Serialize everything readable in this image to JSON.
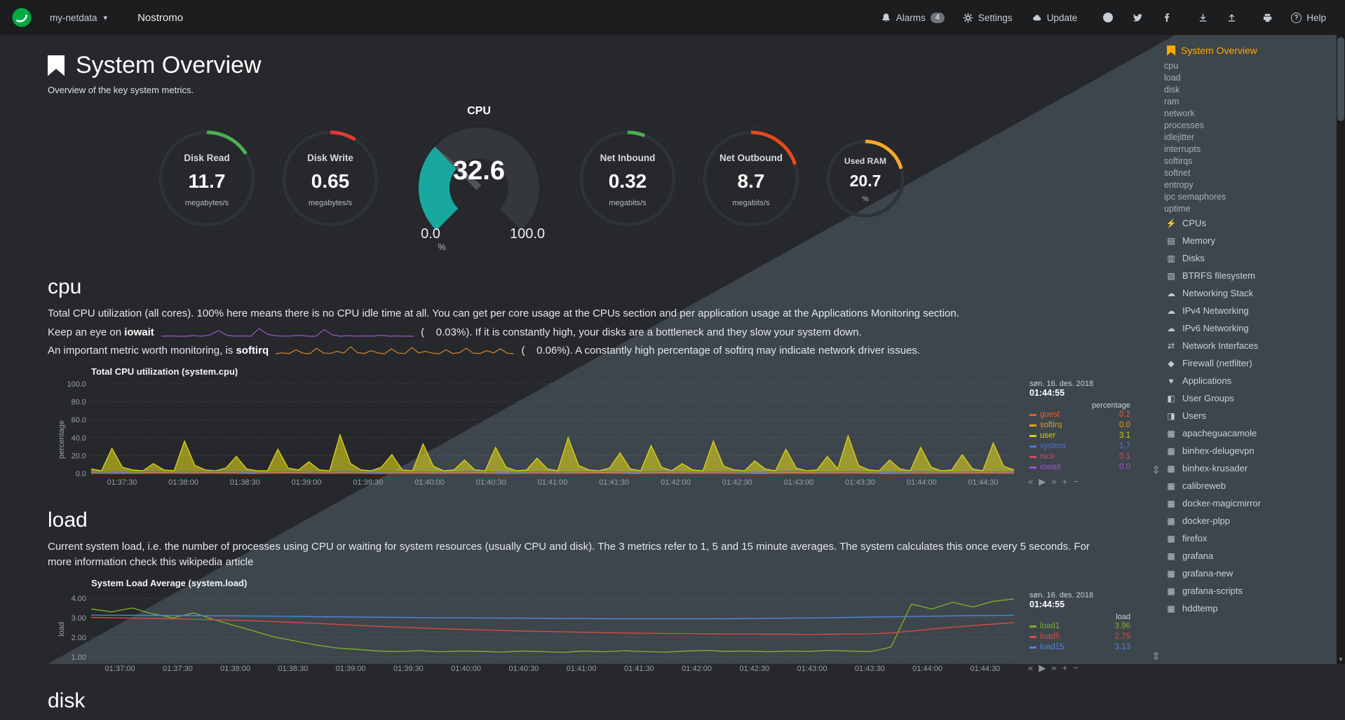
{
  "navbar": {
    "brand": "my-netdata",
    "caret": "▾",
    "hostname": "Nostromo",
    "alarms_label": "Alarms",
    "alarms_badge": "4",
    "settings_label": "Settings",
    "update_label": "Update",
    "help_label": "Help",
    "help_glyph": "?"
  },
  "header": {
    "title": "System Overview",
    "subtitle": "Overview of the key system metrics."
  },
  "gauges": [
    {
      "id": "disk-read",
      "type": "pie",
      "title": "Disk Read",
      "value": "11.7",
      "unit": "megabytes/s",
      "color": "#4caf50",
      "fraction": 0.16
    },
    {
      "id": "disk-write",
      "type": "pie",
      "title": "Disk Write",
      "value": "0.65",
      "unit": "megabytes/s",
      "color": "#e53935",
      "fraction": 0.09
    },
    {
      "id": "cpu",
      "type": "gauge",
      "title": "CPU",
      "value": "32.6",
      "min_label": "0.0",
      "max_label": "100.0",
      "unit": "%",
      "color": "#19a8a0",
      "fraction": 0.326
    },
    {
      "id": "net-inbound",
      "type": "pie",
      "title": "Net Inbound",
      "value": "0.32",
      "unit": "megabits/s",
      "color": "#4caf50",
      "fraction": 0.06
    },
    {
      "id": "net-outbound",
      "type": "pie",
      "title": "Net Outbound",
      "value": "8.7",
      "unit": "megabits/s",
      "color": "#e64a19",
      "fraction": 0.2
    },
    {
      "id": "used-ram",
      "type": "pie",
      "small": true,
      "title": "Used RAM",
      "value": "20.7",
      "unit": "%",
      "color": "#f9a825",
      "fraction": 0.207
    }
  ],
  "cpu_section": {
    "heading": "cpu",
    "para": "Total CPU utilization (all cores). 100% here means there is no CPU idle time at all. You can get per core usage at the CPUs section and per application usage at the Applications Monitoring section.",
    "iowait_pre": "Keep an eye on ",
    "iowait_term": "iowait",
    "iowait_value": "(    0.03%)",
    "iowait_post": ". If it is constantly high, your disks are a bottleneck and they slow your system down.",
    "softirq_pre": "An important metric worth monitoring, is ",
    "softirq_term": "softirq",
    "softirq_value": "(    0.06%)",
    "softirq_post": ". A constantly high percentage of softirq may indicate network driver issues."
  },
  "sparklines": {
    "iowait": {
      "color": "#9a5bc9",
      "data": [
        0,
        0.1,
        0,
        0,
        0.2,
        0,
        0.5,
        2.2,
        0.4,
        0,
        0.1,
        0,
        3,
        0.8,
        0.2,
        0,
        0.1,
        0.3,
        0,
        0,
        2.6,
        0.5,
        0,
        0.2,
        0,
        0.1,
        0,
        0.4,
        0,
        0.1,
        0,
        0
      ]
    },
    "softirq": {
      "color": "#d08a2c",
      "data": [
        0.2,
        0.5,
        0.3,
        1.5,
        0.4,
        0.2,
        2,
        0.5,
        0.3,
        1,
        0.4,
        2.5,
        0.6,
        0.3,
        1.2,
        0.5,
        0.2,
        1.8,
        0.4,
        0.3,
        2.2,
        0.5,
        1,
        0.4,
        0.2,
        1.5,
        0.3,
        0.6,
        2,
        0.4,
        0.3,
        1.2,
        0.5,
        1.8,
        0.4,
        0.2
      ]
    }
  },
  "load_section": {
    "heading": "load",
    "para": "Current system load, i.e. the number of processes using CPU or waiting for system resources (usually CPU and disk). The 3 metrics refer to 1, 5 and 15 minute averages. The system calculates this once every 5 seconds. For more information check this ",
    "link": "wikipedia article"
  },
  "disk_section": {
    "heading": "disk"
  },
  "chart_ui": {
    "skip_back": "«",
    "play": "▶",
    "skip_forward": "»",
    "zoom_in": "+",
    "zoom_out": "−",
    "resize": "⇕"
  },
  "chart_data": [
    {
      "id": "cpu",
      "type": "area",
      "title": "Total CPU utilization (system.cpu)",
      "ylabel": "percentage",
      "ylim": [
        0,
        100
      ],
      "yticks": [
        0,
        20,
        40,
        60,
        80,
        100
      ],
      "ytick_labels": [
        "0.0",
        "20.0",
        "40.0",
        "60.0",
        "80.0",
        "100.0"
      ],
      "x_labels": [
        "01:37:30",
        "01:38:00",
        "01:38:30",
        "01:39:00",
        "01:39:30",
        "01:40:00",
        "01:40:30",
        "01:41:00",
        "01:41:30",
        "01:42:00",
        "01:42:30",
        "01:43:00",
        "01:43:30",
        "01:44:00",
        "01:44:30"
      ],
      "legend_date": "søn. 16. des. 2018",
      "legend_time": "01:44:55",
      "legend_unit": "percentage",
      "series": [
        {
          "name": "guest",
          "value": "0.2",
          "color": "#e0612e",
          "fill": true,
          "data": [
            0.3,
            0.1,
            0.4,
            0.2,
            0.3,
            0.1,
            0.5,
            0.2,
            0.3,
            0.1,
            0.4,
            0.2,
            0.3,
            0.1,
            0.4,
            0.2,
            0.5,
            0.1,
            0.3,
            0.2,
            0.4,
            0.1,
            0.3,
            0.2,
            0.4,
            0.1,
            0.3,
            0.2,
            0.4,
            0.2
          ]
        },
        {
          "name": "softirq",
          "value": "0.0",
          "color": "#e3a21a",
          "fill": true,
          "data": [
            0.5,
            0.3,
            0.7,
            0.4,
            0.6,
            0.3,
            0.8,
            0.4,
            0.5,
            0.3,
            0.7,
            0.4,
            0.6,
            0.3,
            0.5,
            0.4,
            0.8,
            0.3,
            0.6,
            0.4,
            0.5,
            0.3,
            0.7,
            0.4,
            0.6,
            0.3,
            0.5,
            0.4,
            0.7,
            0.3
          ]
        },
        {
          "name": "user",
          "value": "3.1",
          "color": "#d6cf1b",
          "fill": true,
          "data": [
            5,
            3,
            28,
            7,
            4,
            3,
            11,
            4,
            3,
            36,
            9,
            4,
            3,
            6,
            19,
            5,
            3,
            3,
            27,
            6,
            4,
            13,
            4,
            3,
            43,
            11,
            4,
            3,
            7,
            21,
            4,
            3,
            33,
            8,
            3,
            4,
            15,
            4,
            3,
            29,
            7,
            3,
            4,
            17,
            5,
            3,
            40,
            9,
            4,
            3,
            6,
            23,
            5,
            3,
            31,
            7,
            3,
            11,
            4,
            3,
            36,
            8,
            4,
            3,
            14,
            5,
            3,
            27,
            6,
            3,
            4,
            19,
            5,
            42,
            9,
            4,
            3,
            15,
            5,
            3,
            29,
            7,
            3,
            4,
            21,
            5,
            3,
            34,
            8,
            4
          ]
        },
        {
          "name": "system",
          "value": "1.7",
          "color": "#4d74d8",
          "fill": true,
          "data": [
            1.8,
            1.4,
            2.2,
            1.6,
            2.4,
            1.4,
            2.0,
            1.7,
            2.3,
            1.5,
            2.1,
            1.6,
            2.5,
            1.4,
            1.9,
            1.7,
            2.2,
            1.5,
            2.3,
            1.6,
            2.0,
            1.4,
            2.4,
            1.7,
            2.1,
            1.5,
            2.2,
            1.6,
            2.0,
            1.7
          ]
        },
        {
          "name": "nice",
          "value": "0.1",
          "color": "#d14a61",
          "fill": false,
          "data": []
        },
        {
          "name": "iowait",
          "value": "0.0",
          "color": "#9e54c9",
          "fill": false,
          "data": []
        }
      ]
    },
    {
      "id": "load",
      "type": "line",
      "title": "System Load Average (system.load)",
      "ylabel": "load",
      "ylim": [
        0.85,
        4.15
      ],
      "yticks": [
        1,
        2,
        3,
        4
      ],
      "ytick_labels": [
        "1.00",
        "2.00",
        "3.00",
        "4.00"
      ],
      "x_labels": [
        "01:37:00",
        "01:37:30",
        "01:38:00",
        "01:38:30",
        "01:39:00",
        "01:39:30",
        "01:40:00",
        "01:40:30",
        "01:41:00",
        "01:41:30",
        "01:42:00",
        "01:42:30",
        "01:43:00",
        "01:43:30",
        "01:44:00",
        "01:44:30"
      ],
      "legend_date": "søn. 16. des. 2018",
      "legend_time": "01:44:55",
      "legend_unit": "load",
      "series": [
        {
          "name": "load1",
          "value": "3.96",
          "color": "#7bb026",
          "fill": false,
          "data": [
            3.45,
            3.3,
            3.5,
            3.2,
            3.0,
            3.25,
            2.9,
            2.6,
            2.3,
            2.0,
            1.8,
            1.6,
            1.45,
            1.38,
            1.3,
            1.27,
            1.32,
            1.26,
            1.3,
            1.28,
            1.24,
            1.3,
            1.27,
            1.23,
            1.3,
            1.26,
            1.31,
            1.27,
            1.24,
            1.3,
            1.33,
            1.28,
            1.3,
            1.26,
            1.3,
            1.28,
            1.33,
            1.3,
            1.27,
            1.5,
            3.7,
            3.45,
            3.8,
            3.55,
            3.85,
            3.96
          ]
        },
        {
          "name": "load5",
          "value": "2.75",
          "color": "#d54c43",
          "fill": false,
          "data": [
            3.02,
            3.0,
            2.98,
            2.96,
            2.95,
            2.92,
            2.9,
            2.87,
            2.84,
            2.8,
            2.76,
            2.71,
            2.66,
            2.61,
            2.56,
            2.52,
            2.48,
            2.44,
            2.41,
            2.38,
            2.35,
            2.32,
            2.3,
            2.28,
            2.26,
            2.24,
            2.22,
            2.21,
            2.2,
            2.19,
            2.18,
            2.17,
            2.17,
            2.16,
            2.16,
            2.15,
            2.16,
            2.17,
            2.18,
            2.22,
            2.32,
            2.42,
            2.52,
            2.6,
            2.68,
            2.75
          ]
        },
        {
          "name": "load15",
          "value": "3.13",
          "color": "#4f86d8",
          "fill": false,
          "data": [
            3.14,
            3.13,
            3.13,
            3.12,
            3.12,
            3.11,
            3.1,
            3.1,
            3.09,
            3.08,
            3.07,
            3.06,
            3.05,
            3.04,
            3.03,
            3.02,
            3.01,
            3.0,
            3.0,
            2.99,
            2.98,
            2.98,
            2.97,
            2.96,
            2.96,
            2.95,
            2.95,
            2.94,
            2.94,
            2.94,
            2.95,
            2.95,
            2.96,
            2.97,
            2.98,
            2.99,
            3.0,
            3.02,
            3.04,
            3.05,
            3.07,
            3.08,
            3.1,
            3.11,
            3.12,
            3.13
          ]
        }
      ]
    }
  ],
  "sidebar": {
    "glyphs": {
      "bolt": "⚡",
      "memory": "▤",
      "disks": "▥",
      "filesystem": "▧",
      "cloud": "☁",
      "interfaces": "⇄",
      "firewall": "◆",
      "applications": "♥",
      "user-groups": "◧",
      "users": "◨",
      "grid": "▦"
    },
    "items": [
      {
        "label": "System Overview",
        "icon": "bookmark",
        "cls": "main",
        "active": true
      },
      {
        "label": "cpu",
        "cls": "sub"
      },
      {
        "label": "load",
        "cls": "sub"
      },
      {
        "label": "disk",
        "cls": "sub"
      },
      {
        "label": "ram",
        "cls": "sub"
      },
      {
        "label": "network",
        "cls": "sub"
      },
      {
        "label": "processes",
        "cls": "sub"
      },
      {
        "label": "idlejitter",
        "cls": "sub"
      },
      {
        "label": "interrupts",
        "cls": "sub"
      },
      {
        "label": "softirqs",
        "cls": "sub"
      },
      {
        "label": "softnet",
        "cls": "sub"
      },
      {
        "label": "entropy",
        "cls": "sub"
      },
      {
        "label": "ipc semaphores",
        "cls": "sub"
      },
      {
        "label": "uptime",
        "cls": "sub"
      },
      {
        "label": "CPUs",
        "icon": "bolt",
        "cls": "section"
      },
      {
        "label": "Memory",
        "icon": "memory",
        "cls": "section"
      },
      {
        "label": "Disks",
        "icon": "disks",
        "cls": "section"
      },
      {
        "label": "BTRFS filesystem",
        "icon": "filesystem",
        "cls": "section"
      },
      {
        "label": "Networking Stack",
        "icon": "cloud",
        "cls": "section"
      },
      {
        "label": "IPv4 Networking",
        "icon": "cloud",
        "cls": "section"
      },
      {
        "label": "IPv6 Networking",
        "icon": "cloud",
        "cls": "section"
      },
      {
        "label": "Network Interfaces",
        "icon": "interfaces",
        "cls": "section"
      },
      {
        "label": "Firewall (netfilter)",
        "icon": "firewall",
        "cls": "section"
      },
      {
        "label": "Applications",
        "icon": "applications",
        "cls": "section"
      },
      {
        "label": "User Groups",
        "icon": "user-groups",
        "cls": "section"
      },
      {
        "label": "Users",
        "icon": "users",
        "cls": "section"
      },
      {
        "label": "apacheguacamole",
        "icon": "grid",
        "cls": "section"
      },
      {
        "label": "binhex-delugevpn",
        "icon": "grid",
        "cls": "section"
      },
      {
        "label": "binhex-krusader",
        "icon": "grid",
        "cls": "section"
      },
      {
        "label": "calibreweb",
        "icon": "grid",
        "cls": "section"
      },
      {
        "label": "docker-magicmirror",
        "icon": "grid",
        "cls": "section"
      },
      {
        "label": "docker-plpp",
        "icon": "grid",
        "cls": "section"
      },
      {
        "label": "firefox",
        "icon": "grid",
        "cls": "section"
      },
      {
        "label": "grafana",
        "icon": "grid",
        "cls": "section"
      },
      {
        "label": "grafana-new",
        "icon": "grid",
        "cls": "section"
      },
      {
        "label": "grafana-scripts",
        "icon": "grid",
        "cls": "section"
      },
      {
        "label": "hddtemp",
        "icon": "grid",
        "cls": "section"
      }
    ]
  }
}
